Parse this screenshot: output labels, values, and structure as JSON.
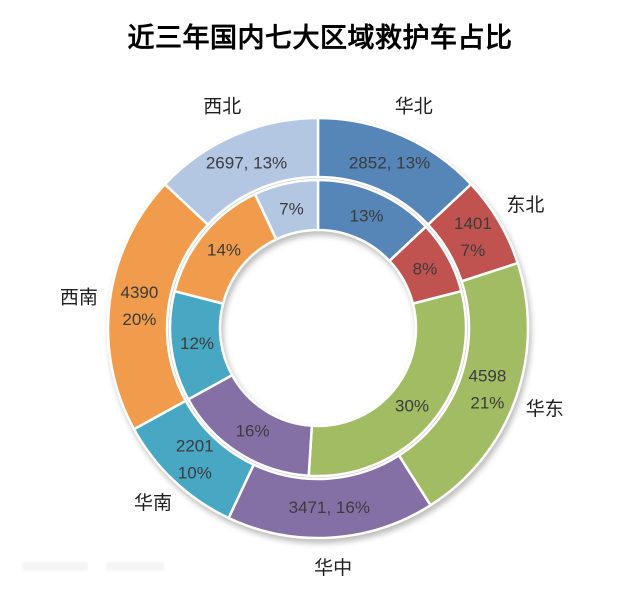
{
  "chart_data": {
    "type": "donut",
    "title": "近三年国内七大区域救护车占比",
    "legend_position": "none",
    "start_angle_deg": 0,
    "direction": "clockwise",
    "categories": [
      "华北",
      "东北",
      "华东",
      "华中",
      "华南",
      "西南",
      "西北"
    ],
    "colors": [
      "#5586B7",
      "#C0534F",
      "#A2BC64",
      "#8570A5",
      "#48A8C4",
      "#F09C4C",
      "#B3C6E2"
    ],
    "series": [
      {
        "name": "outer-ring",
        "values": [
          2852,
          1401,
          4598,
          3471,
          2201,
          4390,
          2697
        ],
        "pcts": [
          13,
          7,
          21,
          16,
          10,
          20,
          13
        ],
        "labels": [
          [
            "2852, 13%"
          ],
          [
            "1401",
            "7%"
          ],
          [
            "4598",
            "21%"
          ],
          [
            "3471, 16%"
          ],
          [
            "2201",
            "10%"
          ],
          [
            "4390",
            "20%"
          ],
          [
            "2697, 13%"
          ]
        ]
      },
      {
        "name": "inner-ring",
        "pcts": [
          13,
          8,
          30,
          16,
          12,
          14,
          7
        ],
        "labels": [
          [
            "13%"
          ],
          [
            "8%"
          ],
          [
            "30%"
          ],
          [
            "16%"
          ],
          [
            "12%"
          ],
          [
            "14%"
          ],
          [
            "7%"
          ]
        ]
      }
    ]
  }
}
